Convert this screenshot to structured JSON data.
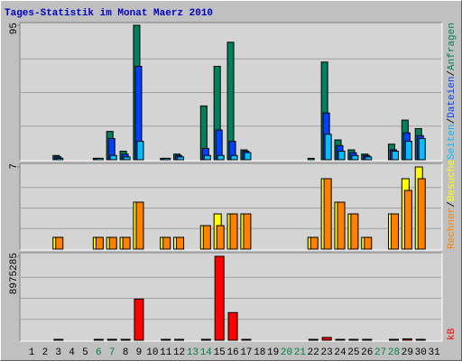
{
  "chart_data": {
    "type": "bar",
    "title": "Tages-Statistik im Monat Maerz 2010",
    "legend_separator": "/",
    "categories": [
      "1",
      "2",
      "3",
      "4",
      "5",
      "6",
      "7",
      "8",
      "9",
      "10",
      "11",
      "12",
      "13",
      "14",
      "15",
      "16",
      "17",
      "18",
      "19",
      "20",
      "21",
      "22",
      "23",
      "24",
      "25",
      "26",
      "27",
      "28",
      "29",
      "30",
      "31"
    ],
    "category_colors": [
      "#000000",
      "#000000",
      "#000000",
      "#000000",
      "#000000",
      "#008040",
      "#008040",
      "#000000",
      "#000000",
      "#000000",
      "#000000",
      "#000000",
      "#008040",
      "#008040",
      "#000000",
      "#000000",
      "#000000",
      "#000000",
      "#000000",
      "#008040",
      "#008040",
      "#000000",
      "#000000",
      "#000000",
      "#000000",
      "#000000",
      "#008040",
      "#008040",
      "#000000",
      "#000000",
      "#000000"
    ],
    "panels": [
      {
        "ylim": [
          0,
          95
        ],
        "yticks": [
          95
        ],
        "series": [
          {
            "name": "Anfragen",
            "color": "#00805c",
            "values": [
              0,
              0,
              3,
              0,
              0,
              1,
              20,
              6,
              95,
              0,
              1,
              4,
              0,
              38,
              66,
              83,
              7,
              0,
              0,
              0,
              0,
              1,
              69,
              14,
              7,
              4,
              0,
              11,
              28,
              22,
              0
            ]
          },
          {
            "name": "Dateien",
            "color": "#0040ff",
            "values": [
              0,
              0,
              2,
              0,
              0,
              1,
              15,
              4,
              66,
              0,
              1,
              3,
              0,
              8,
              21,
              13,
              6,
              0,
              0,
              0,
              0,
              0,
              33,
              10,
              5,
              3,
              0,
              7,
              19,
              17,
              0
            ]
          },
          {
            "name": "Seiten",
            "color": "#00c0ff",
            "values": [
              0,
              0,
              1,
              0,
              0,
              1,
              3,
              2,
              13,
              0,
              1,
              2,
              0,
              3,
              3,
              3,
              5,
              0,
              0,
              0,
              0,
              0,
              18,
              6,
              3,
              2,
              0,
              6,
              13,
              15,
              0
            ]
          }
        ]
      },
      {
        "ylim": [
          0,
          7
        ],
        "yticks": [
          7
        ],
        "series": [
          {
            "name": "Besuche",
            "color": "#ffff00",
            "values": [
              0,
              0,
              1,
              0,
              0,
              1,
              1,
              1,
              4,
              0,
              1,
              1,
              0,
              2,
              3,
              3,
              3,
              0,
              0,
              0,
              0,
              1,
              6,
              4,
              3,
              1,
              0,
              3,
              6,
              7,
              0
            ]
          },
          {
            "name": "Rechner",
            "color": "#ff8000",
            "values": [
              0,
              0,
              1,
              0,
              0,
              1,
              1,
              1,
              4,
              0,
              1,
              1,
              0,
              2,
              2,
              3,
              3,
              0,
              0,
              0,
              0,
              1,
              6,
              4,
              3,
              1,
              0,
              3,
              5,
              6,
              0
            ]
          }
        ]
      },
      {
        "ylim": [
          0,
          8975285
        ],
        "yticks": [
          8975285
        ],
        "series": [
          {
            "name": "kB",
            "color": "#ff0000",
            "values": [
              0,
              0,
              60000,
              0,
              0,
              60000,
              100000,
              60000,
              4400000,
              0,
              60000,
              60000,
              0,
              100000,
              8975285,
              2960000,
              60000,
              0,
              0,
              0,
              0,
              60000,
              300000,
              60000,
              60000,
              60000,
              0,
              60000,
              150000,
              60000,
              0
            ]
          }
        ]
      }
    ]
  }
}
